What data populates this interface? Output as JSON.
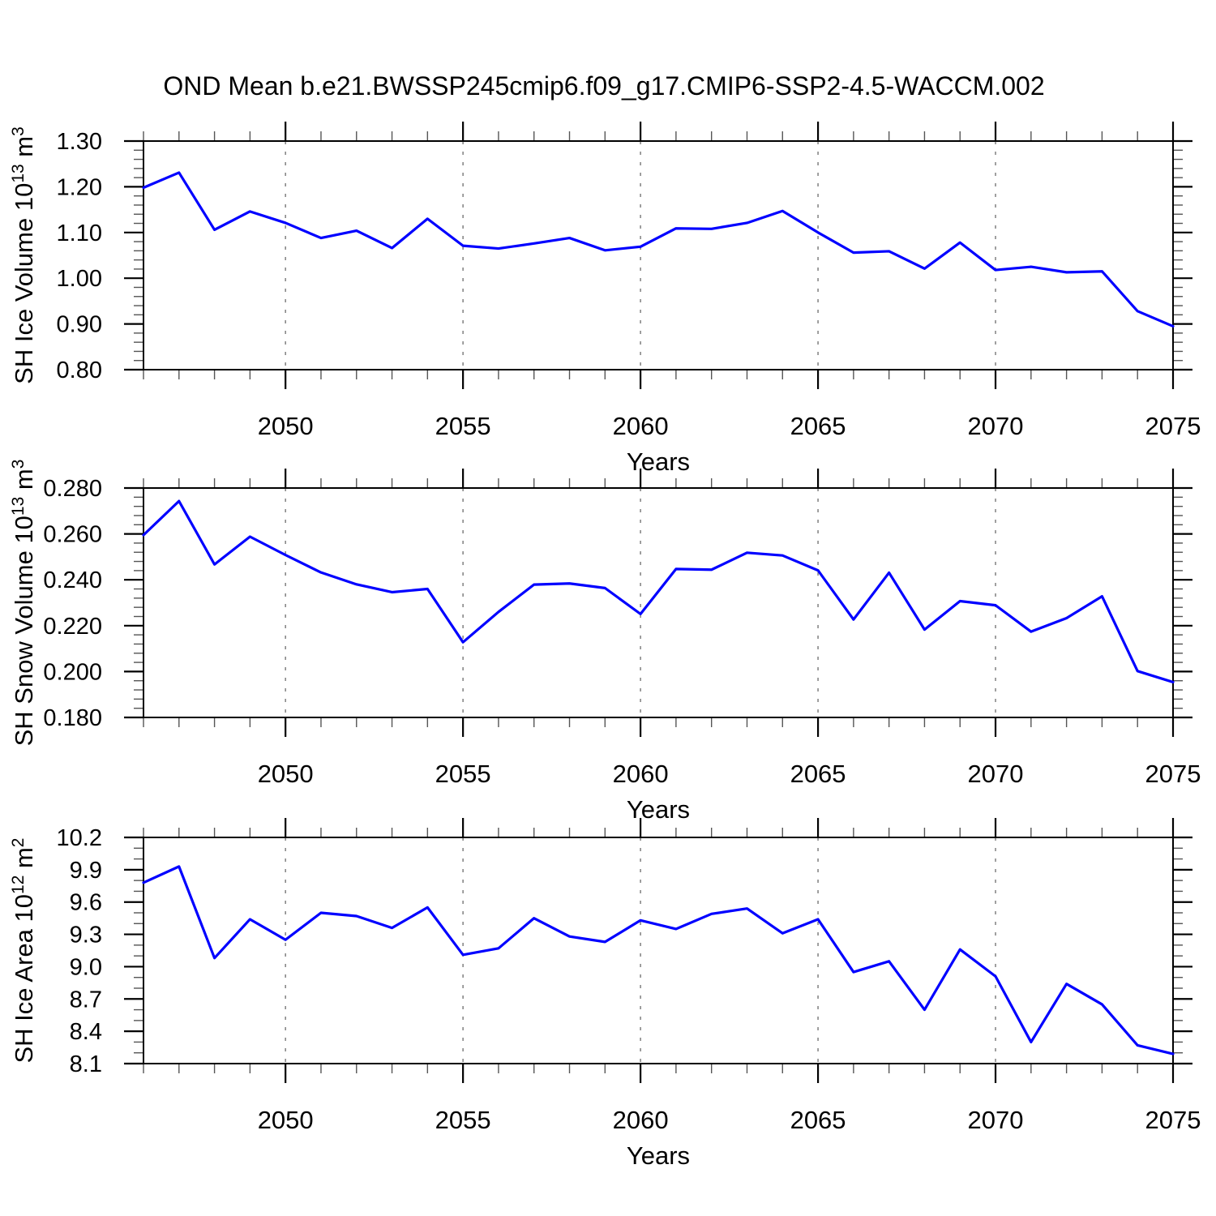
{
  "title": "OND Mean b.e21.BWSSP245cmip6.f09_g17.CMIP6-SSP2-4.5-WACCM.002",
  "colors": {
    "line": "#0000ff",
    "grid": "#808080",
    "axis": "#000000",
    "minor_tick": "#555555",
    "text": "#000000",
    "background": "#ffffff"
  },
  "x_axis": {
    "label": "Years",
    "min": 2046,
    "max": 2075,
    "minor_step": 1,
    "major_ticks": [
      2050,
      2055,
      2060,
      2065,
      2070,
      2075
    ],
    "major_tick_labels": [
      "2050",
      "2055",
      "2060",
      "2065",
      "2070",
      "2075"
    ],
    "gridlines": [
      2050,
      2055,
      2060,
      2065,
      2070
    ],
    "years": [
      2046,
      2047,
      2048,
      2049,
      2050,
      2051,
      2052,
      2053,
      2054,
      2055,
      2056,
      2057,
      2058,
      2059,
      2060,
      2061,
      2062,
      2063,
      2064,
      2065,
      2066,
      2067,
      2068,
      2069,
      2070,
      2071,
      2072,
      2073,
      2074,
      2075
    ]
  },
  "chart_data": [
    {
      "type": "line",
      "ylabel": "SH Ice Volume 10^13 m^3",
      "ylabel_parts": [
        {
          "text": "SH Ice Volume 10",
          "sup": false
        },
        {
          "text": "13",
          "sup": true
        },
        {
          "text": " m",
          "sup": false
        },
        {
          "text": "3",
          "sup": true
        }
      ],
      "ylim": [
        0.8,
        1.3
      ],
      "ymajor": 0.1,
      "yminor": 0.02,
      "ytick_labels": [
        "0.80",
        "0.90",
        "1.00",
        "1.10",
        "1.20",
        "1.30"
      ],
      "values": [
        1.198,
        1.231,
        1.106,
        1.146,
        1.121,
        1.088,
        1.104,
        1.066,
        1.13,
        1.071,
        1.065,
        1.076,
        1.088,
        1.061,
        1.069,
        1.109,
        1.108,
        1.121,
        1.147,
        1.1,
        1.056,
        1.059,
        1.021,
        1.078,
        1.018,
        1.025,
        1.013,
        1.015,
        0.928,
        0.895
      ]
    },
    {
      "type": "line",
      "ylabel": "SH Snow Volume 10^13 m^3",
      "ylabel_parts": [
        {
          "text": "SH Snow Volume 10",
          "sup": false
        },
        {
          "text": "13",
          "sup": true
        },
        {
          "text": " m",
          "sup": false
        },
        {
          "text": "3",
          "sup": true
        }
      ],
      "ylim": [
        0.18,
        0.28
      ],
      "ymajor": 0.02,
      "yminor": 0.004,
      "ytick_labels": [
        "0.180",
        "0.200",
        "0.220",
        "0.240",
        "0.260",
        "0.280"
      ],
      "values": [
        0.2595,
        0.2743,
        0.2467,
        0.2588,
        0.2508,
        0.2432,
        0.238,
        0.2346,
        0.236,
        0.2128,
        0.226,
        0.2379,
        0.2384,
        0.2364,
        0.2251,
        0.2447,
        0.2444,
        0.2518,
        0.2506,
        0.2441,
        0.2227,
        0.2431,
        0.2183,
        0.2307,
        0.2289,
        0.2174,
        0.2233,
        0.2328,
        0.2002,
        0.1954
      ]
    },
    {
      "type": "line",
      "ylabel": "SH Ice Area 10^12 m^2",
      "ylabel_parts": [
        {
          "text": "SH Ice Area 10",
          "sup": false
        },
        {
          "text": "12",
          "sup": true
        },
        {
          "text": " m",
          "sup": false
        },
        {
          "text": "2",
          "sup": true
        }
      ],
      "ylim": [
        8.1,
        10.2
      ],
      "ymajor": 0.3,
      "yminor": 0.1,
      "ytick_labels": [
        "8.1",
        "8.4",
        "8.7",
        "9.0",
        "9.3",
        "9.6",
        "9.9",
        "10.2"
      ],
      "values": [
        9.78,
        9.93,
        9.08,
        9.44,
        9.25,
        9.5,
        9.47,
        9.36,
        9.55,
        9.11,
        9.17,
        9.45,
        9.28,
        9.23,
        9.43,
        9.35,
        9.49,
        9.54,
        9.31,
        9.44,
        8.95,
        9.05,
        8.6,
        9.16,
        8.91,
        8.3,
        8.84,
        8.65,
        8.27,
        8.19
      ]
    }
  ]
}
